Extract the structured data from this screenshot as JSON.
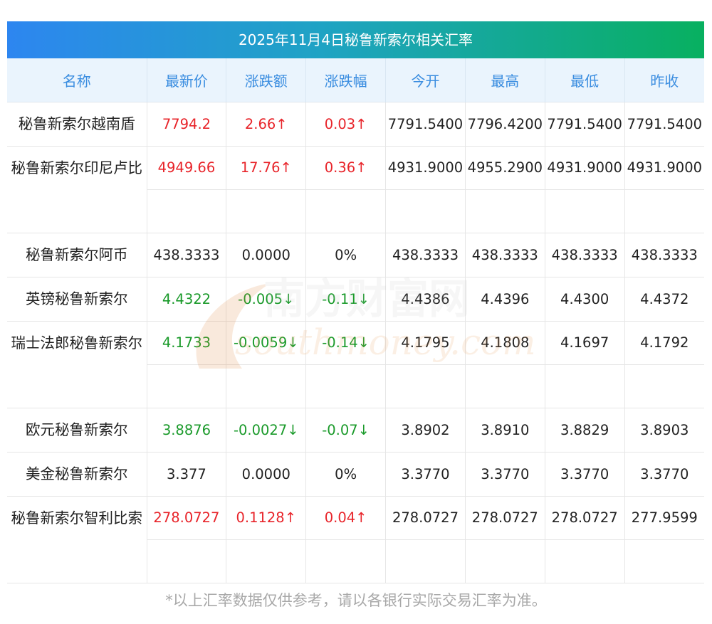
{
  "title": "2025年11月4日秘鲁新索尔相关汇率",
  "headers": [
    "名称",
    "最新价",
    "涨跌额",
    "涨跌幅",
    "今开",
    "最高",
    "最低",
    "昨收"
  ],
  "rows": [
    {
      "name": "秘鲁新索尔越南盾",
      "latest": "7794.2",
      "change": "2.66↑",
      "pct": "0.03↑",
      "open": "7791.5400",
      "high": "7796.4200",
      "low": "7791.5400",
      "prev": "7791.5400",
      "trend": "up"
    },
    {
      "name": "秘鲁新索尔印尼卢比",
      "latest": "4949.66",
      "change": "17.76↑",
      "pct": "0.36↑",
      "open": "4931.9000",
      "high": "4955.2900",
      "low": "4931.9000",
      "prev": "4931.9000",
      "trend": "up"
    },
    {
      "name": "秘鲁新索尔阿币",
      "latest": "438.3333",
      "change": "0.0000",
      "pct": "0%",
      "open": "438.3333",
      "high": "438.3333",
      "low": "438.3333",
      "prev": "438.3333",
      "trend": "flat"
    },
    {
      "name": "英镑秘鲁新索尔",
      "latest": "4.4322",
      "change": "-0.005↓",
      "pct": "-0.11↓",
      "open": "4.4386",
      "high": "4.4396",
      "low": "4.4300",
      "prev": "4.4372",
      "trend": "down"
    },
    {
      "name": "瑞士法郎秘鲁新索尔",
      "latest": "4.1733",
      "change": "-0.0059↓",
      "pct": "-0.14↓",
      "open": "4.1795",
      "high": "4.1808",
      "low": "4.1697",
      "prev": "4.1792",
      "trend": "down"
    },
    {
      "name": "欧元秘鲁新索尔",
      "latest": "3.8876",
      "change": "-0.0027↓",
      "pct": "-0.07↓",
      "open": "3.8902",
      "high": "3.8910",
      "low": "3.8829",
      "prev": "3.8903",
      "trend": "down"
    },
    {
      "name": "美金秘鲁新索尔",
      "latest": "3.377",
      "change": "0.0000",
      "pct": "0%",
      "open": "3.3770",
      "high": "3.3770",
      "low": "3.3770",
      "prev": "3.3770",
      "trend": "flat"
    },
    {
      "name": "秘鲁新索尔智利比索",
      "latest": "278.0727",
      "change": "0.1128↑",
      "pct": "0.04↑",
      "open": "278.0727",
      "high": "278.0727",
      "low": "278.0727",
      "prev": "277.9599",
      "trend": "up"
    }
  ],
  "footer": "*以上汇率数据仅供参考，请以各银行实际交易汇率为准。",
  "watermark": {
    "cn": "南方财富网",
    "en": "southmoney.com"
  },
  "colors": {
    "up": "#e8242a",
    "down": "#1a9a2a",
    "header_text": "#3a8de0",
    "header_bg": "#eaf4fd"
  }
}
